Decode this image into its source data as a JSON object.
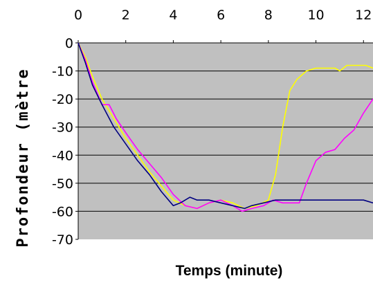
{
  "chart_data": {
    "type": "line",
    "title": "",
    "xlabel": "Temps (minute)",
    "ylabel": "Profondeur (mètre",
    "xlim": [
      0,
      12.4
    ],
    "ylim": [
      -70,
      0
    ],
    "x_ticks": [
      0,
      2,
      4,
      6,
      8,
      10,
      12
    ],
    "y_ticks": [
      0,
      -10,
      -20,
      -30,
      -40,
      -50,
      -60,
      -70
    ],
    "x_tick_labels": [
      "0",
      "2",
      "4",
      "6",
      "8",
      "10",
      "12"
    ],
    "y_tick_labels": [
      "0",
      "-10",
      "-20",
      "-30",
      "-40",
      "-50",
      "-60",
      "-70"
    ],
    "grid": "horizontal",
    "plot_background": "#c0c0c0",
    "axis_position": "x-axis labels on top",
    "series": [
      {
        "color": "#ffff00",
        "x": [
          0,
          0.3,
          0.6,
          1.0,
          1.5,
          2.0,
          2.5,
          3.0,
          3.5,
          4.0,
          4.5,
          5.0,
          5.5,
          6.0,
          6.5,
          7.0,
          7.5,
          8.0,
          8.3,
          8.6,
          8.9,
          9.2,
          9.6,
          10.0,
          10.5,
          10.8,
          11.0,
          11.3,
          11.7,
          12.1,
          12.4
        ],
        "y": [
          0,
          -5,
          -12,
          -20,
          -27,
          -34,
          -40,
          -46,
          -51,
          -56,
          -58,
          -59,
          -57,
          -56,
          -57,
          -59,
          -58,
          -56,
          -47,
          -30,
          -17,
          -13,
          -10,
          -9,
          -9,
          -9,
          -10,
          -8,
          -8,
          -8,
          -9
        ]
      },
      {
        "color": "#ff00ff",
        "x": [
          0,
          0.3,
          0.6,
          1.0,
          1.3,
          1.6,
          2.0,
          2.5,
          3.0,
          3.5,
          4.0,
          4.5,
          5.0,
          5.5,
          6.0,
          6.5,
          6.9,
          7.3,
          7.8,
          8.2,
          8.6,
          9.0,
          9.3,
          9.6,
          10.0,
          10.4,
          10.8,
          11.2,
          11.6,
          12.0,
          12.4
        ],
        "y": [
          0,
          -6,
          -14,
          -22,
          -22,
          -27,
          -32,
          -38,
          -43,
          -48,
          -54,
          -58,
          -59,
          -57,
          -56,
          -58,
          -60,
          -59,
          -58,
          -56,
          -57,
          -57,
          -57,
          -50,
          -42,
          -39,
          -38,
          -34,
          -31,
          -25,
          -20
        ]
      },
      {
        "color": "#000080",
        "x": [
          0,
          0.3,
          0.6,
          1.0,
          1.5,
          2.0,
          2.5,
          3.0,
          3.5,
          4.0,
          4.3,
          4.7,
          5.0,
          5.5,
          6.0,
          6.5,
          7.0,
          7.3,
          7.8,
          8.3,
          9.0,
          10.0,
          11.0,
          12.0,
          12.4
        ],
        "y": [
          0,
          -7,
          -15,
          -22,
          -30,
          -36,
          -42,
          -47,
          -53,
          -58,
          -57,
          -55,
          -56,
          -56,
          -57,
          -58,
          -59,
          -58,
          -57,
          -56,
          -56,
          -56,
          -56,
          -56,
          -57
        ]
      }
    ]
  }
}
